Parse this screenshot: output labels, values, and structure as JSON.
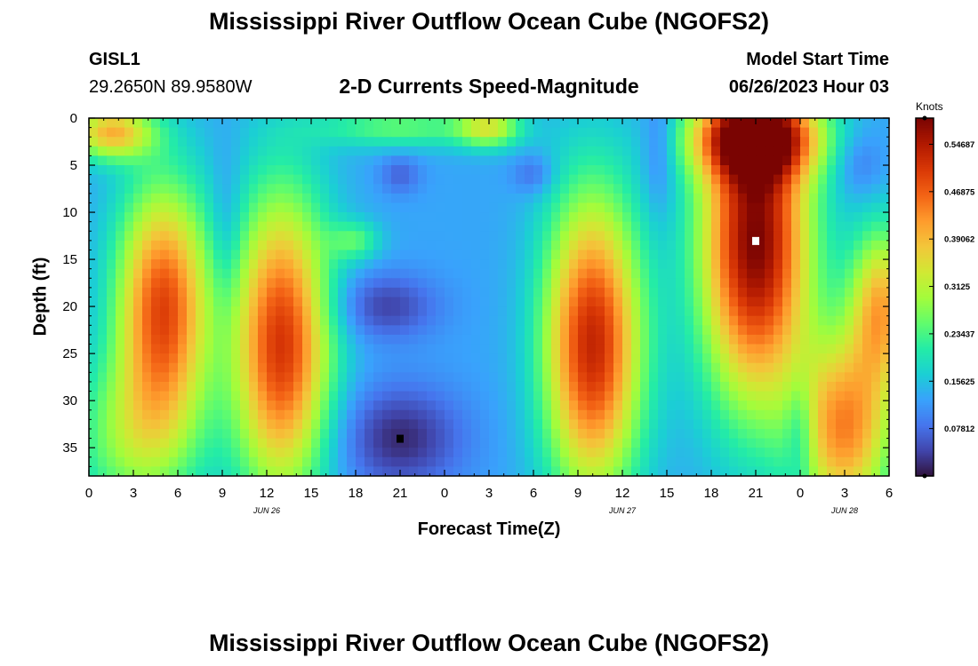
{
  "page": {
    "title": "Mississippi River Outflow Ocean Cube (NGOFS2)",
    "title_bottom": "Mississippi River Outflow Ocean Cube (NGOFS2)",
    "station_id": "GISL1",
    "station_coords": "29.2650N  89.9580W",
    "subtitle": "2-D Currents Speed-Magnitude",
    "model_label": "Model Start Time",
    "model_time": "06/26/2023 Hour 03"
  },
  "chart_data": {
    "type": "heatmap",
    "title": "2-D Currents Speed-Magnitude",
    "xlabel": "Forecast Time(Z)",
    "ylabel": "Depth (ft)",
    "colorbar_label": "Knots",
    "x_range_hours": [
      0,
      54
    ],
    "x_ticks": [
      "0",
      "3",
      "6",
      "9",
      "12",
      "15",
      "18",
      "21",
      "0",
      "3",
      "6",
      "9",
      "12",
      "15",
      "18",
      "21",
      "0",
      "3",
      "6"
    ],
    "date_labels": [
      {
        "label": "JUN 26",
        "hour": 12
      },
      {
        "label": "JUN 27",
        "hour": 36
      },
      {
        "label": "JUN 28",
        "hour": 51
      }
    ],
    "y_range": [
      38,
      0
    ],
    "y_ticks": [
      0,
      5,
      10,
      15,
      20,
      25,
      30,
      35
    ],
    "colorbar_range": [
      0,
      0.59
    ],
    "colorbar_ticks": [
      "0.07812",
      "0.15625",
      "0.23437",
      "0.3125",
      "0.39062",
      "0.46875",
      "0.54687"
    ],
    "colorbar_tick_values": [
      0.078125,
      0.15625,
      0.234375,
      0.3125,
      0.390625,
      0.46875,
      0.546875
    ],
    "colormap": [
      "#30123b",
      "#4145ab",
      "#4675ed",
      "#39a2fc",
      "#1bcfd4",
      "#24eca6",
      "#61fc6c",
      "#a4fc3b",
      "#d1e834",
      "#f3c63a",
      "#fe9b2d",
      "#f36315",
      "#d93806",
      "#b11901",
      "#7a0402"
    ],
    "markers": [
      {
        "name": "max",
        "hour": 45,
        "depth": 13,
        "color": "#ffffff"
      },
      {
        "name": "min",
        "hour": 21,
        "depth": 34,
        "color": "#000000"
      }
    ],
    "speed_features": [
      {
        "hour": 1.5,
        "depth": 1.5,
        "sx": 2,
        "sy": 2,
        "amp": 0.26
      },
      {
        "hour": 5,
        "depth": 20,
        "sx": 2.2,
        "sy": 9,
        "amp": 0.36
      },
      {
        "hour": 3,
        "depth": 34,
        "sx": 3,
        "sy": 6,
        "amp": 0.14
      },
      {
        "hour": 13,
        "depth": 24,
        "sx": 2.3,
        "sy": 11,
        "amp": 0.38
      },
      {
        "hour": 20,
        "depth": 20,
        "sx": 2.5,
        "sy": 2.5,
        "amp": -0.09
      },
      {
        "hour": 21,
        "depth": 34,
        "sx": 3,
        "sy": 4,
        "amp": -0.11
      },
      {
        "hour": 21,
        "depth": 1,
        "sx": 4,
        "sy": 1.5,
        "amp": 0.12
      },
      {
        "hour": 27,
        "depth": 1,
        "sx": 1.5,
        "sy": 1.5,
        "amp": 0.18
      },
      {
        "hour": 18,
        "depth": 13,
        "sx": 1.2,
        "sy": 1.5,
        "amp": 0.1
      },
      {
        "hour": 21,
        "depth": 6,
        "sx": 1,
        "sy": 1.5,
        "amp": -0.06
      },
      {
        "hour": 30,
        "depth": 6,
        "sx": 1,
        "sy": 1.5,
        "amp": -0.06
      },
      {
        "hour": 34,
        "depth": 24,
        "sx": 2.3,
        "sy": 11,
        "amp": 0.4
      },
      {
        "hour": 45,
        "depth": 13,
        "sx": 2.6,
        "sy": 12,
        "amp": 0.46
      },
      {
        "hour": 45,
        "depth": 2,
        "sx": 3,
        "sy": 3,
        "amp": 0.35
      },
      {
        "hour": 51,
        "depth": 33,
        "sx": 2.3,
        "sy": 7,
        "amp": 0.3
      },
      {
        "hour": 53.5,
        "depth": 20,
        "sx": 1.5,
        "sy": 6,
        "amp": 0.26
      },
      {
        "hour": 52,
        "depth": 5,
        "sx": 1.2,
        "sy": 2.5,
        "amp": -0.05
      },
      {
        "hour": 38.5,
        "depth": 3,
        "sx": 0.8,
        "sy": 5,
        "amp": -0.06
      },
      {
        "hour": 48,
        "depth": 33,
        "sx": 0.7,
        "sy": 4,
        "amp": -0.08
      },
      {
        "hour": 9.3,
        "depth": 12,
        "sx": 0.8,
        "sy": 6,
        "amp": -0.05
      }
    ]
  }
}
